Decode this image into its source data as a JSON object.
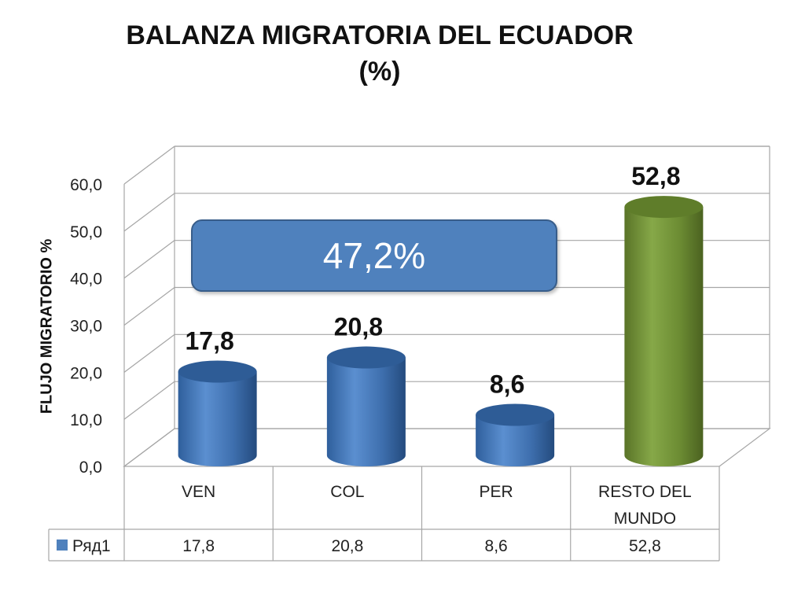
{
  "title_line1": "BALANZA MIGRATORIA DEL ECUADOR",
  "title_line2": "(%)",
  "callout": "47,2%",
  "colors": {
    "bar": "#4f81bd",
    "highlight": "#77933c",
    "callout": "#4f81bd"
  },
  "chart_data": {
    "type": "bar",
    "style": "3d-cylinder",
    "title": "BALANZA MIGRATORIA DEL ECUADOR (%)",
    "ylabel": "FLUJO MIGRATORIO %",
    "xlabel": "",
    "ylim": [
      0,
      60
    ],
    "yticks": [
      "0,0",
      "10,0",
      "20,0",
      "30,0",
      "40,0",
      "50,0",
      "60,0"
    ],
    "grid": true,
    "categories": [
      [
        "VEN"
      ],
      [
        "COL"
      ],
      [
        "PER"
      ],
      [
        "RESTO DEL",
        "MUNDO"
      ]
    ],
    "series": [
      {
        "name": "Ряд1",
        "values": [
          17.8,
          20.8,
          8.6,
          52.8
        ],
        "labels": [
          "17,8",
          "20,8",
          "8,6",
          "52,8"
        ]
      }
    ],
    "highlight_index": 3,
    "data_table": true
  }
}
